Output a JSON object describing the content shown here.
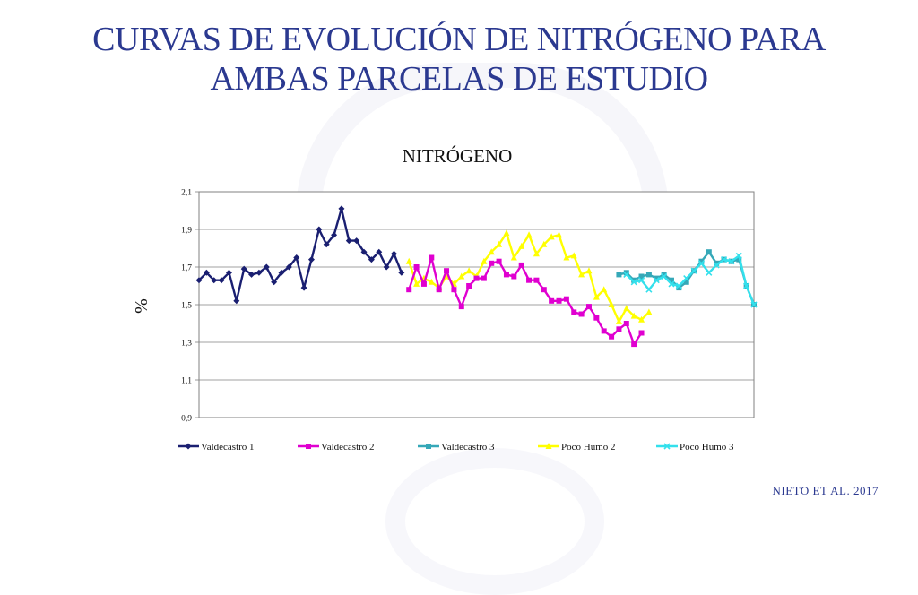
{
  "slide": {
    "title_line1": "CURVAS DE EVOLUCIÓN DE NITRÓGENO PARA",
    "title_line2": "AMBAS PARCELAS DE ESTUDIO",
    "credit": "NIETO ET AL. 2017"
  },
  "chart_data": {
    "type": "line",
    "title": "NITRÓGENO",
    "ylabel": "%",
    "xlabel": "",
    "ylim": [
      0.9,
      2.1
    ],
    "yticks": [
      "2,1",
      "1,9",
      "1,7",
      "1,5",
      "1,3",
      "1,1",
      "0,9"
    ],
    "ytick_values": [
      2.1,
      1.9,
      1.7,
      1.5,
      1.3,
      1.1,
      0.9
    ],
    "grid": true,
    "legend_position": "bottom",
    "x_count": 75,
    "series": [
      {
        "name": "Valdecastro 1",
        "color": "#1a1f71",
        "marker": "diamond",
        "start": 0,
        "values": [
          1.63,
          1.67,
          1.63,
          1.63,
          1.67,
          1.52,
          1.69,
          1.66,
          1.67,
          1.7,
          1.62,
          1.67,
          1.7,
          1.75,
          1.59,
          1.74,
          1.9,
          1.82,
          1.87,
          2.01,
          1.84,
          1.84,
          1.78,
          1.74,
          1.78,
          1.7,
          1.77,
          1.67
        ]
      },
      {
        "name": "Valdecastro 2",
        "color": "#e000d0",
        "marker": "square",
        "start": 28,
        "values": [
          1.58,
          1.7,
          1.61,
          1.75,
          1.58,
          1.68,
          1.58,
          1.49,
          1.6,
          1.64,
          1.64,
          1.72,
          1.73,
          1.66,
          1.65,
          1.71,
          1.63,
          1.63,
          1.58,
          1.52,
          1.52,
          1.53,
          1.46,
          1.45,
          1.49,
          1.43,
          1.36,
          1.33,
          1.37,
          1.4,
          1.29,
          1.35
        ]
      },
      {
        "name": "Valdecastro 3",
        "color": "#35a8b8",
        "marker": "square",
        "start": 56,
        "values": [
          1.66,
          1.67,
          1.63,
          1.65,
          1.66,
          1.64,
          1.66,
          1.63,
          1.59,
          1.62,
          1.68,
          1.73,
          1.78,
          1.72,
          1.74,
          1.73,
          1.74,
          1.6,
          1.5
        ]
      },
      {
        "name": "Poco Humo 2",
        "color": "#ffff00",
        "marker": "triangle",
        "start": 28,
        "values": [
          1.73,
          1.61,
          1.64,
          1.62,
          1.59,
          1.65,
          1.61,
          1.65,
          1.68,
          1.65,
          1.73,
          1.78,
          1.82,
          1.88,
          1.75,
          1.81,
          1.87,
          1.77,
          1.82,
          1.86,
          1.87,
          1.75,
          1.76,
          1.66,
          1.68,
          1.54,
          1.58,
          1.5,
          1.41,
          1.48,
          1.44,
          1.42,
          1.46
        ]
      },
      {
        "name": "Poco Humo 3",
        "color": "#33e0ec",
        "marker": "x",
        "start": 57,
        "values": [
          1.66,
          1.62,
          1.63,
          1.58,
          1.63,
          1.65,
          1.61,
          1.6,
          1.64,
          1.68,
          1.72,
          1.67,
          1.71,
          1.74,
          1.73,
          1.76,
          1.6,
          1.5
        ]
      }
    ]
  }
}
